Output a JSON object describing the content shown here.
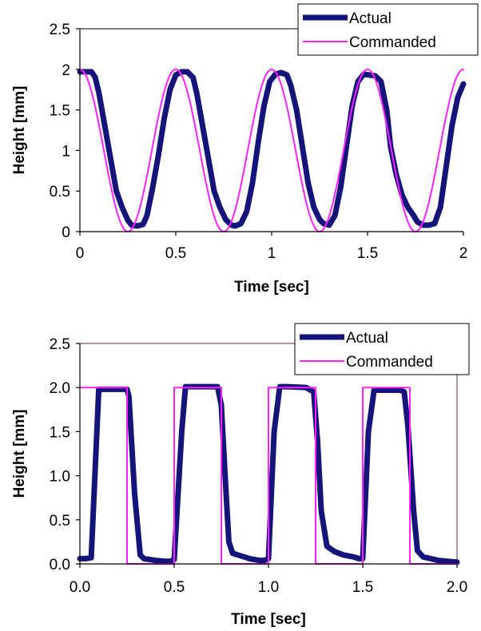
{
  "colors": {
    "actual": "#14147a",
    "commanded": "#ff22ff",
    "axis": "#000000"
  },
  "chart_data": [
    {
      "type": "line",
      "xlabel": "Time [sec]",
      "ylabel": "Height [mm]",
      "xlim": [
        0,
        2
      ],
      "ylim": [
        0,
        2.5
      ],
      "x_ticks": [
        "0",
        "0.5",
        "1",
        "1.5",
        "2"
      ],
      "y_ticks": [
        "0",
        "0.5",
        "1",
        "1.5",
        "2",
        "2.5"
      ],
      "legend": {
        "placement": "top-right"
      },
      "series": [
        {
          "name": "Actual",
          "x": [
            0,
            0.02,
            0.06,
            0.08,
            0.1,
            0.13,
            0.16,
            0.19,
            0.22,
            0.25,
            0.27,
            0.3,
            0.33,
            0.35,
            0.38,
            0.41,
            0.44,
            0.47,
            0.5,
            0.53,
            0.56,
            0.59,
            0.61,
            0.64,
            0.67,
            0.7,
            0.73,
            0.76,
            0.79,
            0.81,
            0.84,
            0.87,
            0.9,
            0.93,
            0.96,
            0.99,
            1.02,
            1.05,
            1.08,
            1.1,
            1.13,
            1.16,
            1.19,
            1.22,
            1.25,
            1.27,
            1.3,
            1.33,
            1.36,
            1.39,
            1.42,
            1.45,
            1.48,
            1.51,
            1.54,
            1.57,
            1.6,
            1.62,
            1.65,
            1.68,
            1.71,
            1.74,
            1.76,
            1.79,
            1.82,
            1.85,
            1.88,
            1.91,
            1.94,
            1.97,
            2.0
          ],
          "y": [
            1.97,
            1.97,
            1.97,
            1.9,
            1.7,
            1.3,
            0.9,
            0.5,
            0.3,
            0.14,
            0.08,
            0.07,
            0.09,
            0.2,
            0.55,
            0.95,
            1.4,
            1.75,
            1.93,
            1.97,
            1.97,
            1.9,
            1.7,
            1.3,
            0.9,
            0.5,
            0.3,
            0.15,
            0.08,
            0.07,
            0.1,
            0.25,
            0.6,
            1.1,
            1.55,
            1.85,
            1.94,
            1.96,
            1.93,
            1.8,
            1.5,
            1.05,
            0.6,
            0.3,
            0.15,
            0.1,
            0.08,
            0.2,
            0.55,
            1.05,
            1.55,
            1.85,
            1.94,
            1.93,
            1.92,
            1.85,
            1.5,
            1.05,
            0.7,
            0.45,
            0.3,
            0.2,
            0.12,
            0.08,
            0.08,
            0.1,
            0.3,
            0.8,
            1.3,
            1.65,
            1.82
          ]
        },
        {
          "name": "Commanded",
          "function": "y = 1 + cos(4*pi*x)",
          "x_range": [
            0,
            2
          ]
        }
      ]
    },
    {
      "type": "line",
      "xlabel": "Time [sec]",
      "ylabel": "Height [mm]",
      "xlim": [
        0,
        2
      ],
      "ylim": [
        0,
        2.5
      ],
      "x_ticks": [
        "0.0",
        "0.5",
        "1.0",
        "1.5",
        "2.0"
      ],
      "y_ticks": [
        "0.0",
        "0.5",
        "1.0",
        "1.5",
        "2.0",
        "2.5"
      ],
      "legend": {
        "placement": "top-right"
      },
      "series": [
        {
          "name": "Actual",
          "x": [
            0.0,
            0.03,
            0.06,
            0.09,
            0.1,
            0.25,
            0.26,
            0.29,
            0.32,
            0.34,
            0.37,
            0.4,
            0.45,
            0.48,
            0.5,
            0.54,
            0.56,
            0.6,
            0.73,
            0.75,
            0.77,
            0.79,
            0.81,
            0.84,
            0.87,
            0.9,
            0.95,
            0.98,
            1.0,
            1.03,
            1.06,
            1.08,
            1.1,
            1.2,
            1.24,
            1.26,
            1.28,
            1.31,
            1.35,
            1.4,
            1.45,
            1.48,
            1.5,
            1.53,
            1.56,
            1.58,
            1.6,
            1.7,
            1.72,
            1.74,
            1.77,
            1.79,
            1.82,
            1.86,
            1.9,
            1.95,
            2.0
          ],
          "y": [
            0.06,
            0.06,
            0.07,
            1.5,
            1.98,
            1.98,
            1.9,
            0.8,
            0.1,
            0.06,
            0.05,
            0.04,
            0.03,
            0.03,
            0.05,
            1.5,
            2.01,
            2.01,
            2.01,
            1.8,
            1.0,
            0.25,
            0.12,
            0.1,
            0.08,
            0.06,
            0.04,
            0.04,
            0.06,
            1.5,
            2.01,
            2.01,
            2.01,
            2.0,
            1.95,
            1.4,
            0.6,
            0.2,
            0.14,
            0.1,
            0.08,
            0.06,
            0.06,
            1.5,
            1.97,
            1.97,
            1.97,
            1.97,
            1.95,
            1.55,
            0.6,
            0.15,
            0.08,
            0.06,
            0.04,
            0.03,
            0.02
          ]
        },
        {
          "name": "Commanded",
          "x": [
            0,
            0.25,
            0.25,
            0.5,
            0.5,
            0.75,
            0.75,
            1.0,
            1.0,
            1.25,
            1.25,
            1.5,
            1.5,
            1.75,
            1.75,
            2.0
          ],
          "y": [
            2,
            2,
            0,
            0,
            2,
            2,
            0,
            0,
            2,
            2,
            0,
            0,
            2,
            2,
            0,
            0
          ]
        }
      ]
    }
  ]
}
